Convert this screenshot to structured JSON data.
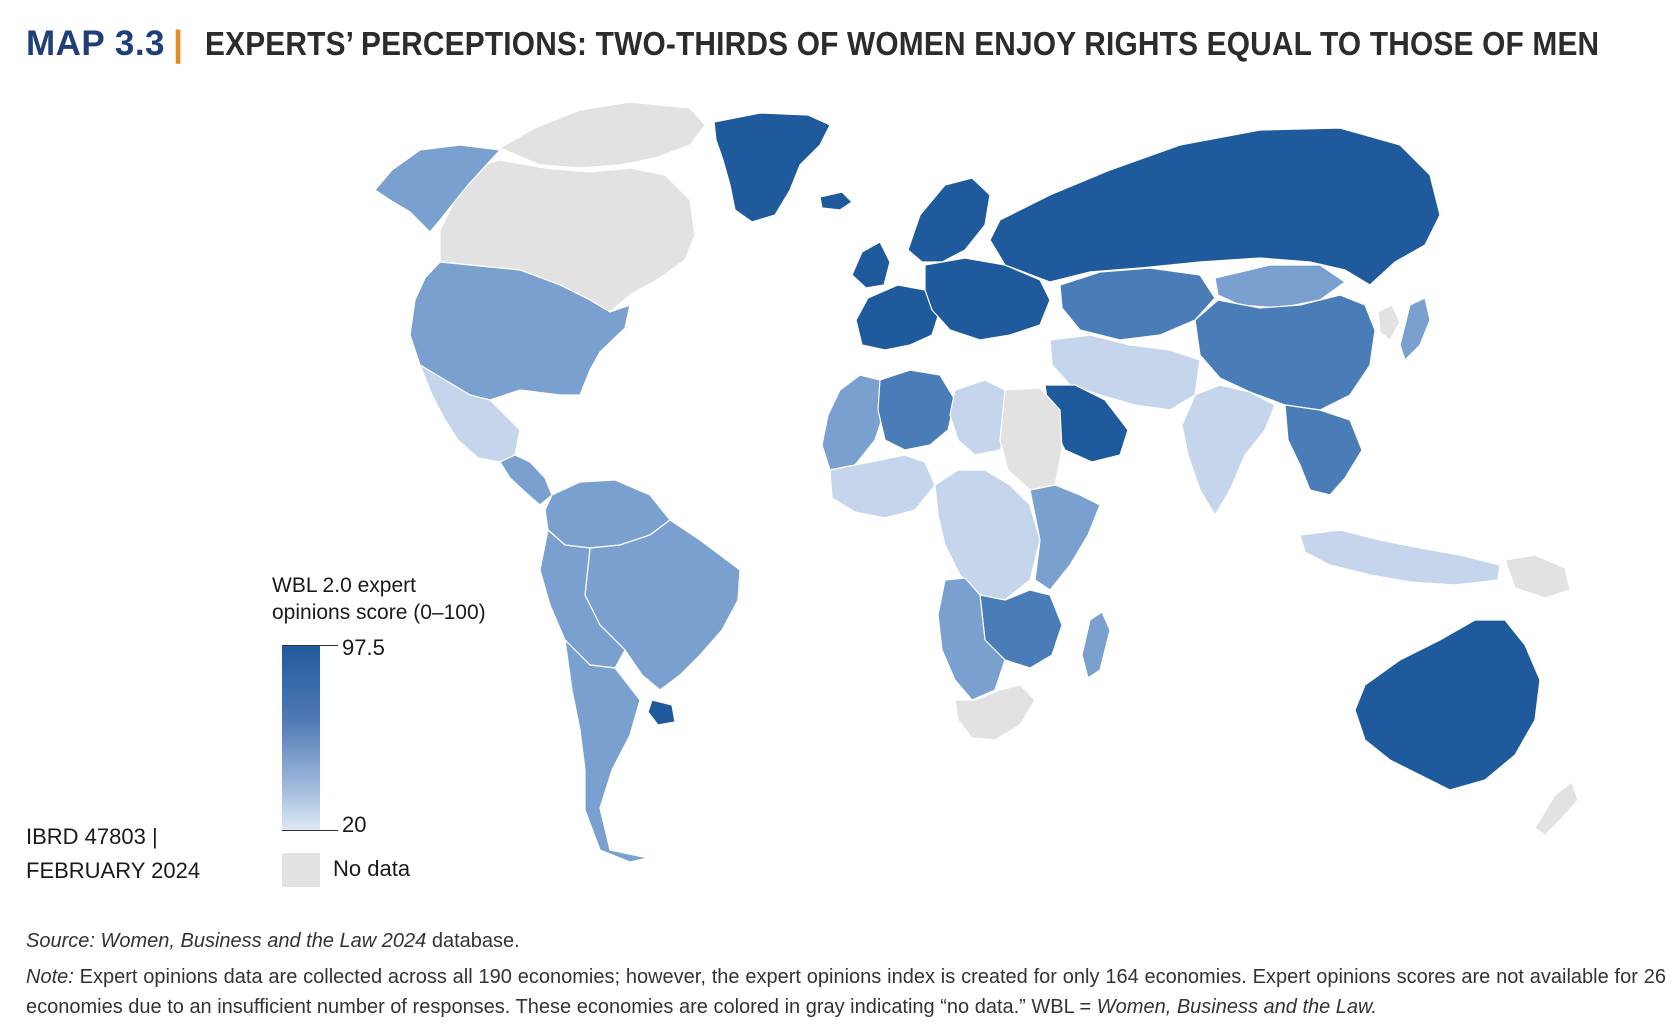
{
  "header": {
    "map_number": "MAP 3.3",
    "separator": "|",
    "title": "EXPERTS’ PERCEPTIONS: TWO-THIRDS OF WOMEN ENJOY RIGHTS EQUAL TO THOSE OF MEN"
  },
  "legend": {
    "title_line1": "WBL 2.0 expert",
    "title_line2": "opinions score (0–100)",
    "max_label": "97.5",
    "min_label": "20",
    "no_data_label": "No data"
  },
  "map_code": {
    "line1": "IBRD 47803 |",
    "line2": "FEBRUARY 2024"
  },
  "source": {
    "label": "Source:",
    "title": "Women, Business and the Law 2024",
    "suffix": "database."
  },
  "note": {
    "label": "Note:",
    "text": "Expert opinions data are collected across all 190 economies; however, the expert opinions index is created for only 164 economies. Expert opinions scores are not available for 26 economies due to an insufficient number of responses. These economies are colored in gray indicating “no data.” WBL =",
    "abbrev_title": "Women, Business and the Law."
  },
  "colors": {
    "title_blue": "#1f3f78",
    "accent_orange": "#e58a2b",
    "high": "#1f5a9c",
    "mid_high": "#4a7cb8",
    "mid": "#7aa0cf",
    "low": "#c5d6ec",
    "no_data": "#e2e2e2"
  },
  "regions": [
    {
      "name": "greenland",
      "score_band": "high"
    },
    {
      "name": "north-canada",
      "score_band": "no-data"
    },
    {
      "name": "canada",
      "score_band": "no-data"
    },
    {
      "name": "alaska",
      "score_band": "mid"
    },
    {
      "name": "usa",
      "score_band": "mid"
    },
    {
      "name": "mexico",
      "score_band": "low"
    },
    {
      "name": "central-america",
      "score_band": "mid"
    },
    {
      "name": "south-america-north",
      "score_band": "mid"
    },
    {
      "name": "brazil",
      "score_band": "mid"
    },
    {
      "name": "bolivia-paraguay",
      "score_band": "mid"
    },
    {
      "name": "argentina-chile",
      "score_band": "mid"
    },
    {
      "name": "uruguay",
      "score_band": "high"
    },
    {
      "name": "iceland",
      "score_band": "high"
    },
    {
      "name": "scandinavia",
      "score_band": "high"
    },
    {
      "name": "uk-ireland",
      "score_band": "high"
    },
    {
      "name": "western-europe",
      "score_band": "high"
    },
    {
      "name": "central-europe",
      "score_band": "high"
    },
    {
      "name": "russia",
      "score_band": "high"
    },
    {
      "name": "kazakhstan",
      "score_band": "mid-high"
    },
    {
      "name": "mongolia",
      "score_band": "mid"
    },
    {
      "name": "china",
      "score_band": "mid-high"
    },
    {
      "name": "japan",
      "score_band": "mid"
    },
    {
      "name": "korea",
      "score_band": "no-data"
    },
    {
      "name": "middle-east",
      "score_band": "low"
    },
    {
      "name": "saudi-arabia",
      "score_band": "high"
    },
    {
      "name": "india",
      "score_band": "low"
    },
    {
      "name": "southeast-asia",
      "score_band": "mid-high"
    },
    {
      "name": "indonesia",
      "score_band": "low"
    },
    {
      "name": "papua-new-guinea",
      "score_band": "no-data"
    },
    {
      "name": "australia",
      "score_band": "high"
    },
    {
      "name": "new-zealand",
      "score_band": "no-data"
    },
    {
      "name": "algeria",
      "score_band": "mid-high"
    },
    {
      "name": "morocco",
      "score_band": "mid"
    },
    {
      "name": "libya",
      "score_band": "low"
    },
    {
      "name": "egypt-sudan",
      "score_band": "no-data"
    },
    {
      "name": "west-africa",
      "score_band": "low"
    },
    {
      "name": "central-africa",
      "score_band": "low"
    },
    {
      "name": "east-africa",
      "score_band": "mid"
    },
    {
      "name": "southern-africa",
      "score_band": "mid"
    },
    {
      "name": "zambia-zimbabwe",
      "score_band": "mid-high"
    },
    {
      "name": "south-africa",
      "score_band": "no-data"
    },
    {
      "name": "madagascar",
      "score_band": "mid"
    }
  ]
}
